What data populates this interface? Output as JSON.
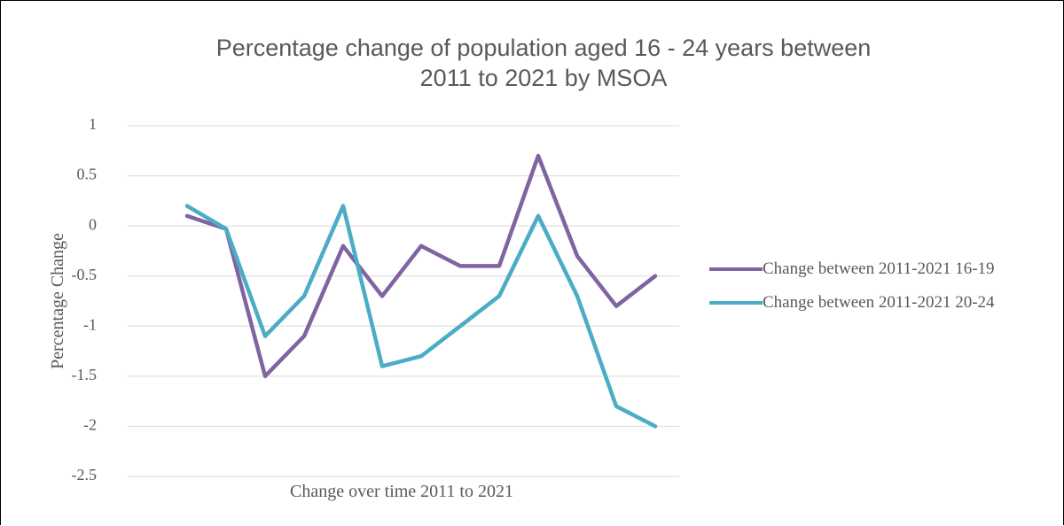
{
  "chart_data": {
    "type": "line",
    "title": "Percentage change of population aged 16 - 24 years between 2011 to 2021 by MSOA",
    "x_label": "Change over time 2011 to 2021",
    "y_label": "Percentage Change",
    "categories": [
      null,
      null,
      null,
      null,
      null,
      null,
      null,
      null,
      null,
      null,
      null,
      null,
      null
    ],
    "series": [
      {
        "name": "Change between 2011-2021 16-19",
        "color": "#8064a2",
        "values": [
          0.1,
          -0.03,
          -1.5,
          -1.1,
          -0.2,
          -0.7,
          -0.2,
          -0.4,
          -0.4,
          0.7,
          -0.3,
          -0.8,
          -0.5
        ]
      },
      {
        "name": "Change between 2011-2021 20-24",
        "color": "#4bacc6",
        "values": [
          0.2,
          -0.03,
          -1.1,
          -0.7,
          0.2,
          -1.4,
          -1.3,
          -1.0,
          -0.7,
          0.1,
          -0.7,
          -1.8,
          -2.0
        ]
      }
    ],
    "ylim": [
      -2.5,
      1
    ],
    "yticks": [
      -2.5,
      -2,
      -1.5,
      -1,
      -0.5,
      0,
      0.5,
      1
    ],
    "grid": true,
    "legend": "right"
  }
}
